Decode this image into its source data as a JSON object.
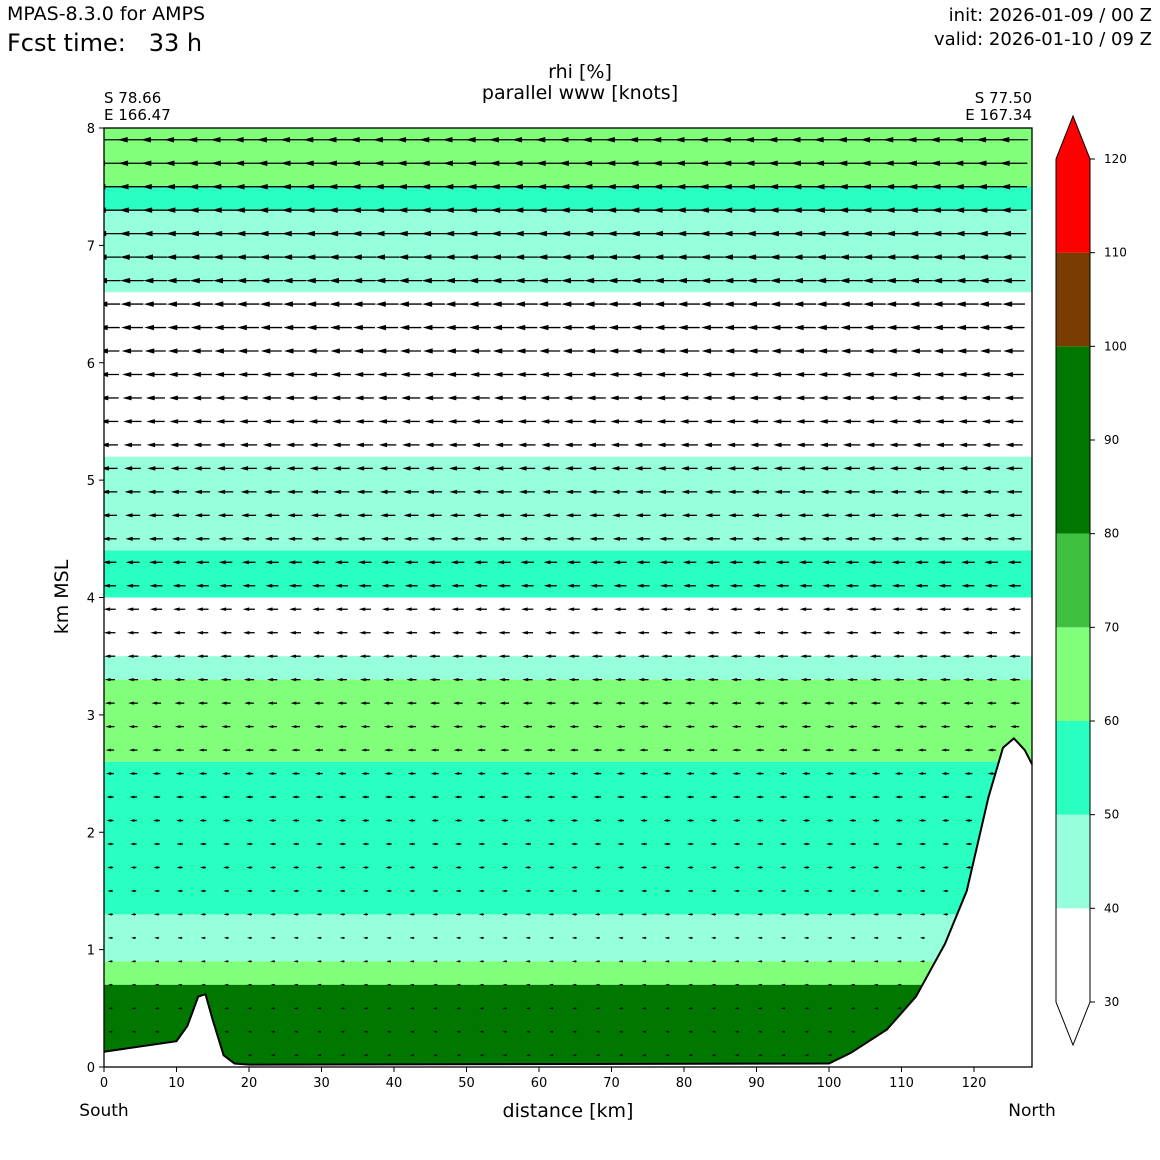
{
  "header": {
    "model": "MPAS-8.3.0 for AMPS",
    "fcst_time": "Fcst time:   33 h",
    "init": "init: 2026-01-09 / 00 Z",
    "valid": "valid: 2026-01-10 / 09 Z"
  },
  "chart_data": {
    "type": "heatmap",
    "title": "rhi [%]",
    "subtitle": "parallel www [knots]",
    "xlabel": "distance [km]",
    "ylabel": "km MSL",
    "xlim": [
      0,
      128
    ],
    "ylim": [
      0,
      8
    ],
    "x_ticks": [
      0,
      10,
      20,
      30,
      40,
      50,
      60,
      70,
      80,
      90,
      100,
      110,
      120
    ],
    "y_ticks": [
      0,
      1,
      2,
      3,
      4,
      5,
      6,
      7,
      8
    ],
    "left_end": {
      "label": "South",
      "lat": "S 78.66",
      "lon": "E 166.47"
    },
    "right_end": {
      "label": "North",
      "lat": "S 77.50",
      "lon": "E 167.34"
    },
    "colorbar": {
      "ticks": [
        30,
        40,
        50,
        60,
        70,
        80,
        90,
        100,
        110,
        120
      ],
      "levels": [
        {
          "from": 30,
          "to": 40,
          "color": "#ffffff"
        },
        {
          "from": 40,
          "to": 50,
          "color": "#96ffdc"
        },
        {
          "from": 50,
          "to": 60,
          "color": "#28ffc0"
        },
        {
          "from": 60,
          "to": 70,
          "color": "#82ff7a"
        },
        {
          "from": 70,
          "to": 80,
          "color": "#40c040"
        },
        {
          "from": 80,
          "to": 100,
          "color": "#007800"
        },
        {
          "from": 100,
          "to": 110,
          "color": "#7a3c00"
        },
        {
          "from": 110,
          "to": 120,
          "color": "#ff0000"
        }
      ]
    },
    "rhi_layers": [
      {
        "z_bottom": 7.5,
        "z_top": 8.0,
        "value": 60
      },
      {
        "z_bottom": 7.3,
        "z_top": 7.5,
        "value": 55
      },
      {
        "z_bottom": 6.6,
        "z_top": 7.3,
        "value": 45
      },
      {
        "z_bottom": 5.8,
        "z_top": 6.6,
        "value": 35
      },
      {
        "z_bottom": 5.2,
        "z_top": 5.8,
        "value": 35
      },
      {
        "z_bottom": 4.4,
        "z_top": 5.2,
        "value": 45
      },
      {
        "z_bottom": 4.0,
        "z_top": 4.4,
        "value": 55
      },
      {
        "z_bottom": 3.5,
        "z_top": 4.0,
        "value": 35
      },
      {
        "z_bottom": 3.3,
        "z_top": 3.5,
        "value": 45
      },
      {
        "z_bottom": 2.6,
        "z_top": 3.3,
        "value": 60
      },
      {
        "z_bottom": 1.3,
        "z_top": 2.6,
        "value": 55
      },
      {
        "z_bottom": 0.9,
        "z_top": 1.3,
        "value": 45
      },
      {
        "z_bottom": 0.7,
        "z_top": 0.9,
        "value": 60
      },
      {
        "z_bottom": 0.0,
        "z_top": 0.7,
        "value": 85
      }
    ],
    "terrain": [
      [
        0,
        0.13
      ],
      [
        10,
        0.22
      ],
      [
        11.5,
        0.35
      ],
      [
        13,
        0.6
      ],
      [
        14,
        0.62
      ],
      [
        15,
        0.4
      ],
      [
        16.5,
        0.1
      ],
      [
        18,
        0.03
      ],
      [
        20,
        0.02
      ],
      [
        100,
        0.03
      ],
      [
        103,
        0.12
      ],
      [
        108,
        0.32
      ],
      [
        112,
        0.6
      ],
      [
        116,
        1.05
      ],
      [
        119,
        1.5
      ],
      [
        122,
        2.3
      ],
      [
        124,
        2.72
      ],
      [
        125.5,
        2.8
      ],
      [
        127,
        2.7
      ],
      [
        128,
        2.58
      ]
    ],
    "wind_vectors": "parallel wind arrows pointing south (toward x=0); speed increasing with height"
  }
}
